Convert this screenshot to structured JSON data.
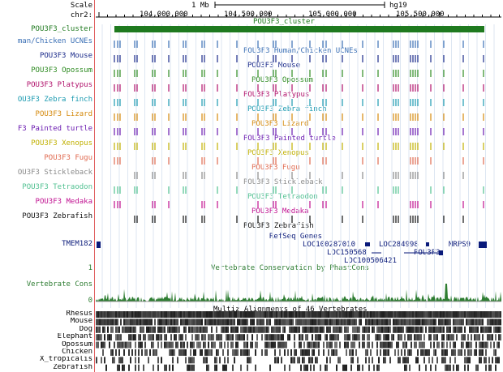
{
  "scale": {
    "label": "Scale",
    "value": "1 Mb",
    "assembly": "hg19"
  },
  "chrom": {
    "name": "chr2:",
    "ticks": [
      "104,000,000",
      "104,500,000",
      "105,000,000",
      "105,500,000"
    ]
  },
  "cluster_track": {
    "label": "POU3F3_cluster",
    "item": "POU3F3_cluster",
    "color": "#1f7a1f"
  },
  "tracks": [
    {
      "label": "man/Chicken UCNEs",
      "title": "POU3F3 Human/Chicken UCNEs",
      "color": "#3a6fb5"
    },
    {
      "label": "POU3F3 Mouse",
      "title": "POU3F3 Mouse",
      "color": "#1a2a8a"
    },
    {
      "label": "POU3F3 Opossum",
      "title": "POU3F3 Opossum",
      "color": "#2e8b22"
    },
    {
      "label": "POU3F3 Platypus",
      "title": "POU3F3 Platypus",
      "color": "#b0106a"
    },
    {
      "label": "OU3F3 Zebra finch",
      "title": "POU3F3 Zebra finch",
      "color": "#1a9ab0"
    },
    {
      "label": "POU3F3 Lizard",
      "title": "POU3F3 Lizard",
      "color": "#d4880a"
    },
    {
      "label": "F3 Painted turtle",
      "title": "POU3F3 Painted turtle",
      "color": "#6a1ab0"
    },
    {
      "label": "POU3F3 Xenopus",
      "title": "POU3F3 Xenopus",
      "color": "#c0b000"
    },
    {
      "label": "POU3F3 Fugu",
      "title": "POU3F3 Fugu",
      "color": "#e06a50"
    },
    {
      "label": "OU3F3 Stickleback",
      "title": "POU3F3 Stickleback",
      "color": "#8a8a8a"
    },
    {
      "label": "POU3F3 Tetraodon",
      "title": "POU3F3 Tetraodon",
      "color": "#50c090"
    },
    {
      "label": "POU3F3 Medaka",
      "title": "POU3F3 Medaka",
      "color": "#c01090"
    },
    {
      "label": "POU3F3 Zebrafish",
      "title": "POU3F3 Zebrafish",
      "color": "#111111"
    }
  ],
  "refseq": {
    "title": "RefSeq Genes",
    "left_label": "TMEM182",
    "genes": [
      "LOC100287010",
      "LOC284998",
      "MRPS9",
      "LOC150568",
      "POU3F3",
      "LOC100506421"
    ],
    "color": "#0a1a7a"
  },
  "conservation": {
    "title": "Vertebrate Conservation by PhastCons",
    "label": "Vertebrate Cons",
    "ymax": "1",
    "ymin": "0",
    "color": "#2e7d32"
  },
  "multiz": {
    "title": "Multiz Alignments of 46 Vertebrates",
    "species": [
      "Rhesus",
      "Mouse",
      "Dog",
      "Elephant",
      "Opossum",
      "Chicken",
      "X_tropicalis",
      "Zebrafish"
    ],
    "color": "#111111"
  }
}
